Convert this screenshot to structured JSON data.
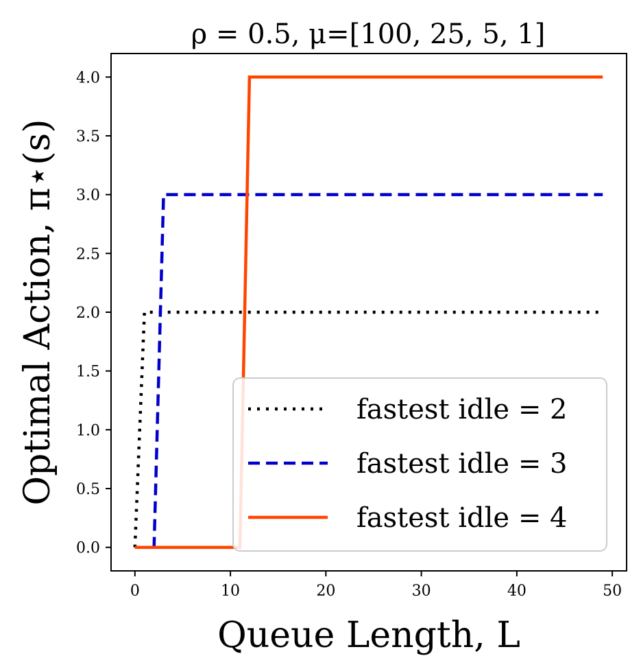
{
  "chart_data": {
    "type": "line",
    "title": "ρ = 0.5, μ=[100, 25, 5, 1]",
    "xlabel": "Queue Length, L",
    "ylabel": "Optimal Action, π⋆(s)",
    "xlim": [
      -2.5,
      51.5
    ],
    "ylim": [
      -0.2,
      4.2
    ],
    "x_ticks": [
      0,
      10,
      20,
      30,
      40,
      50
    ],
    "y_ticks": [
      0.0,
      0.5,
      1.0,
      1.5,
      2.0,
      2.5,
      3.0,
      3.5,
      4.0
    ],
    "x_tick_labels": [
      "0",
      "10",
      "20",
      "30",
      "40",
      "50"
    ],
    "y_tick_labels": [
      "0.0",
      "0.5",
      "1.0",
      "1.5",
      "2.0",
      "2.5",
      "3.0",
      "3.5",
      "4.0"
    ],
    "grid": false,
    "legend_position": "bottom-right",
    "series": [
      {
        "name": "fastest idle = 2",
        "color": "#000000",
        "style": "dotted",
        "x": [
          0,
          1,
          49
        ],
        "y": [
          0,
          2,
          2
        ]
      },
      {
        "name": "fastest idle = 3",
        "color": "#0000cc",
        "style": "dashed",
        "x": [
          0,
          2,
          3,
          49
        ],
        "y": [
          0,
          0,
          3,
          3
        ]
      },
      {
        "name": "fastest idle = 4",
        "color": "#ff4500",
        "style": "solid",
        "x": [
          0,
          11,
          12,
          49
        ],
        "y": [
          0,
          0,
          4,
          4
        ]
      }
    ]
  }
}
